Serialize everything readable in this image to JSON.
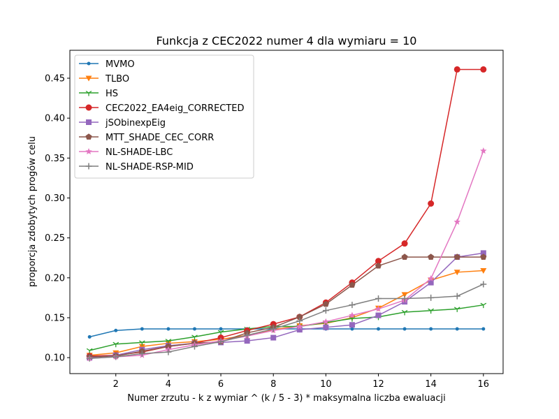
{
  "chart_data": {
    "type": "line",
    "title": "Funkcja z CEC2022 numer 4 dla wymiaru = 10",
    "xlabel": "Numer zrzutu - k z wymiar ^ (k / 5 - 3) * maksymalna liczba ewaluacji",
    "ylabel": "proporcja zdobytych progów celu",
    "xlim": [
      0.25,
      16.75
    ],
    "ylim": [
      0.08,
      0.485
    ],
    "xticks": [
      2,
      4,
      6,
      8,
      10,
      12,
      14,
      16
    ],
    "yticks": [
      0.1,
      0.15,
      0.2,
      0.25,
      0.3,
      0.35,
      0.4,
      0.45
    ],
    "ytick_labels": [
      "0.10",
      "0.15",
      "0.20",
      "0.25",
      "0.30",
      "0.35",
      "0.40",
      "0.45"
    ],
    "grid": false,
    "legend_position": "top-left",
    "x": [
      1,
      2,
      3,
      4,
      5,
      6,
      7,
      8,
      9,
      10,
      11,
      12,
      13,
      14,
      15,
      16
    ],
    "series": [
      {
        "name": "MVMO",
        "color": "#1f77b4",
        "marker": "point",
        "values": [
          0.126,
          0.134,
          0.136,
          0.136,
          0.136,
          0.136,
          0.136,
          0.136,
          0.136,
          0.136,
          0.136,
          0.136,
          0.136,
          0.136,
          0.136,
          0.136
        ]
      },
      {
        "name": "TLBO",
        "color": "#ff7f0e",
        "marker": "triangle-down",
        "values": [
          0.103,
          0.106,
          0.114,
          0.118,
          0.12,
          0.123,
          0.128,
          0.135,
          0.14,
          0.143,
          0.15,
          0.162,
          0.179,
          0.197,
          0.207,
          0.209
        ]
      },
      {
        "name": "HS",
        "color": "#2ca02c",
        "marker": "tri-down",
        "values": [
          0.109,
          0.117,
          0.119,
          0.121,
          0.126,
          0.132,
          0.136,
          0.139,
          0.139,
          0.144,
          0.149,
          0.151,
          0.157,
          0.159,
          0.161,
          0.166
        ]
      },
      {
        "name": "CEC2022_EA4eig_CORRECTED",
        "color": "#d62728",
        "marker": "circle",
        "values": [
          0.102,
          0.103,
          0.107,
          0.114,
          0.118,
          0.125,
          0.134,
          0.142,
          0.151,
          0.169,
          0.194,
          0.221,
          0.243,
          0.293,
          0.461,
          0.461
        ]
      },
      {
        "name": "jSObinexpEig",
        "color": "#9467bd",
        "marker": "square",
        "values": [
          0.1,
          0.103,
          0.11,
          0.115,
          0.118,
          0.119,
          0.121,
          0.125,
          0.135,
          0.138,
          0.141,
          0.153,
          0.17,
          0.194,
          0.226,
          0.231
        ]
      },
      {
        "name": "MTT_SHADE_CEC_CORR",
        "color": "#8c564b",
        "marker": "pentagon",
        "values": [
          0.101,
          0.102,
          0.108,
          0.114,
          0.118,
          0.12,
          0.131,
          0.138,
          0.151,
          0.167,
          0.191,
          0.215,
          0.226,
          0.226,
          0.226,
          0.226
        ]
      },
      {
        "name": "NL-SHADE-LBC",
        "color": "#e377c2",
        "marker": "star",
        "values": [
          0.099,
          0.101,
          0.103,
          0.11,
          0.116,
          0.121,
          0.127,
          0.134,
          0.139,
          0.145,
          0.153,
          0.161,
          0.172,
          0.199,
          0.27,
          0.359
        ]
      },
      {
        "name": "NL-SHADE-RSP-MID",
        "color": "#7f7f7f",
        "marker": "plus",
        "values": [
          0.099,
          0.101,
          0.105,
          0.107,
          0.114,
          0.12,
          0.128,
          0.136,
          0.146,
          0.159,
          0.166,
          0.174,
          0.174,
          0.175,
          0.177,
          0.192
        ]
      }
    ]
  }
}
